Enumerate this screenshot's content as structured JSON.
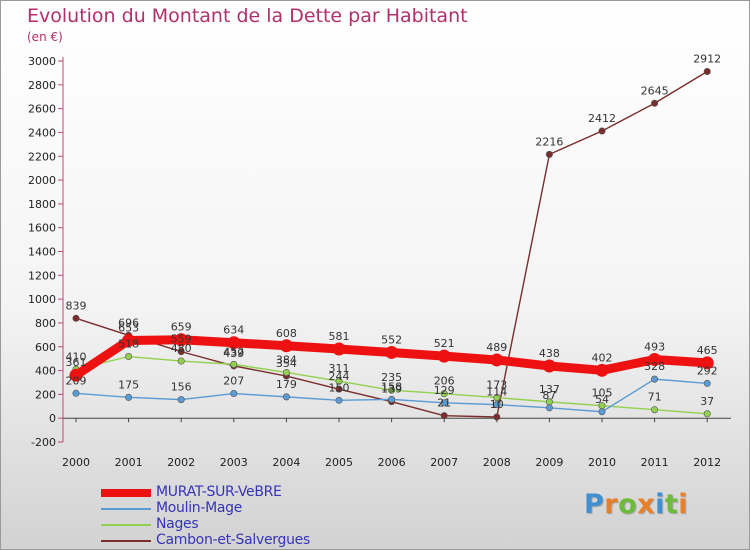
{
  "header": {
    "title": "Evolution du Montant de la Dette par Habitant",
    "unit": "(en €)"
  },
  "logo": {
    "text": "Proxiti",
    "letters": [
      "P",
      "r",
      "o",
      "x",
      "i",
      "t",
      "i"
    ],
    "colors": [
      "#3f8fd2",
      "#e8802a",
      "#6dbb3a",
      "#e8802a",
      "#3f8fd2",
      "#6dbb3a",
      "#e8802a"
    ]
  },
  "chart_data": {
    "type": "line",
    "title": "Evolution du Montant de la Dette par Habitant",
    "subtitle": "(en €)",
    "xlabel": "",
    "ylabel": "",
    "x": [
      "2000",
      "2001",
      "2002",
      "2003",
      "2004",
      "2005",
      "2006",
      "2007",
      "2008",
      "2009",
      "2010",
      "2011",
      "2012"
    ],
    "ylim": [
      -200,
      3000
    ],
    "ytick_step": 200,
    "grid": false,
    "legend_position": "bottom-left",
    "series": [
      {
        "name": "MURAT-SUR-VeBRE",
        "color": "#ee1111",
        "values": [
          361,
          653,
          659,
          634,
          608,
          581,
          552,
          521,
          489,
          438,
          402,
          493,
          465
        ]
      },
      {
        "name": "Moulin-Mage",
        "color": "#5b9bd5",
        "values": [
          209,
          175,
          156,
          207,
          179,
          150,
          158,
          129,
          114,
          87,
          54,
          328,
          292
        ]
      },
      {
        "name": "Nages",
        "color": "#92d050",
        "values": [
          410,
          518,
          480,
          452,
          384,
          311,
          235,
          206,
          173,
          137,
          105,
          71,
          37
        ]
      },
      {
        "name": "Cambon-et-Salvergues",
        "color": "#7b2c2c",
        "values": [
          839,
          696,
          559,
          439,
          354,
          244,
          139,
          21,
          10,
          2216,
          2412,
          2645,
          2912
        ]
      }
    ],
    "data_labels": [
      [
        361,
        653,
        659,
        634,
        608,
        581,
        552,
        521,
        489,
        438,
        402,
        493,
        465
      ],
      [
        209,
        175,
        156,
        207,
        179,
        150,
        158,
        129,
        114,
        87,
        54,
        328,
        292
      ],
      [
        410,
        518,
        480,
        452,
        384,
        311,
        235,
        206,
        173,
        137,
        105,
        71,
        37
      ],
      [
        839,
        696,
        559,
        439,
        354,
        244,
        139,
        21,
        10,
        2216,
        2412,
        2645,
        2912
      ]
    ]
  }
}
